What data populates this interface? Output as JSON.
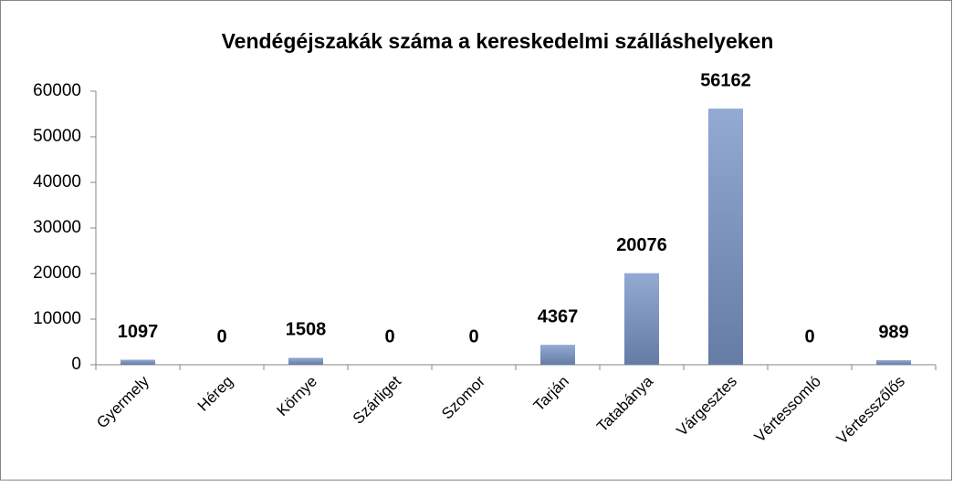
{
  "chart_data": {
    "type": "bar",
    "title": "Vendégéjszakák száma a kereskedelmi szálláshelyeken",
    "categories": [
      "Gyermely",
      "Héreg",
      "Környe",
      "Szárliget",
      "Szomor",
      "Tarján",
      "Tatabánya",
      "Várgesztes",
      "Vértessomló",
      "Vértesszőlős"
    ],
    "values": [
      1097,
      0,
      1508,
      0,
      0,
      4367,
      20076,
      56162,
      0,
      989
    ],
    "color": "#7b97c9",
    "ylim": [
      0,
      60000
    ],
    "yticks": [
      0,
      10000,
      20000,
      30000,
      40000,
      50000,
      60000
    ],
    "grid": false
  }
}
